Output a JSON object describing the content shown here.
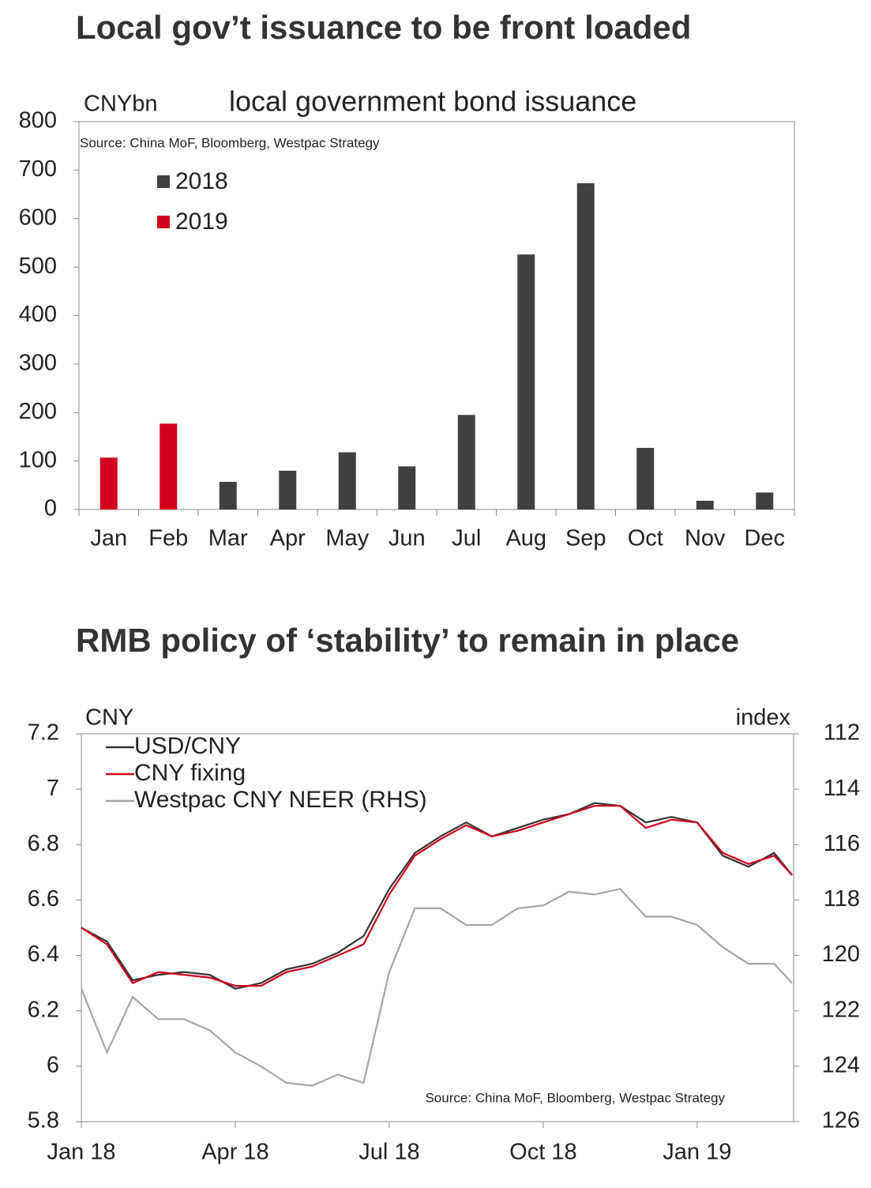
{
  "chart_data": [
    {
      "type": "bar",
      "title": "Local gov’t issuance to be front loaded",
      "subtitle": "local government bond issuance",
      "y_label": "CNYbn",
      "source": "Source: China MoF, Bloomberg, Westpac Strategy",
      "categories": [
        "Jan",
        "Feb",
        "Mar",
        "Apr",
        "May",
        "Jun",
        "Jul",
        "Aug",
        "Sep",
        "Oct",
        "Nov",
        "Dec"
      ],
      "series": [
        {
          "name": "2018",
          "color": "#404040",
          "values": [
            null,
            null,
            57,
            80,
            118,
            89,
            195,
            526,
            673,
            127,
            18,
            35
          ]
        },
        {
          "name": "2019",
          "color": "#d0021b",
          "values": [
            107,
            177,
            null,
            null,
            null,
            null,
            null,
            null,
            null,
            null,
            null,
            null
          ]
        }
      ],
      "ylim": [
        0,
        800
      ],
      "yticks": [
        0,
        100,
        200,
        300,
        400,
        500,
        600,
        700,
        800
      ]
    },
    {
      "type": "line",
      "title": "RMB policy of ‘stability’ to remain in place",
      "y_label": "CNY",
      "y2_label": "index",
      "source": "Source: China MoF, Bloomberg, Westpac Strategy",
      "x": [
        0,
        0.5,
        1,
        1.5,
        2,
        2.5,
        3,
        3.5,
        4,
        4.5,
        5,
        5.5,
        6,
        6.5,
        7,
        7.5,
        8,
        8.5,
        9,
        9.5,
        10,
        10.5,
        11,
        11.5,
        12,
        12.5,
        13,
        13.5,
        13.85
      ],
      "xlim": [
        0,
        13.88
      ],
      "xticks": [
        {
          "value": 0,
          "label": "Jan 18"
        },
        {
          "value": 3,
          "label": "Apr 18"
        },
        {
          "value": 6,
          "label": "Jul 18"
        },
        {
          "value": 9,
          "label": "Oct 18"
        },
        {
          "value": 12,
          "label": "Jan 19"
        }
      ],
      "series": [
        {
          "name": "USD/CNY",
          "color": "#333333",
          "values": [
            6.5,
            6.45,
            6.31,
            6.33,
            6.34,
            6.33,
            6.28,
            6.3,
            6.35,
            6.37,
            6.41,
            6.47,
            6.64,
            6.77,
            6.83,
            6.88,
            6.83,
            6.86,
            6.89,
            6.91,
            6.95,
            6.94,
            6.88,
            6.9,
            6.88,
            6.76,
            6.72,
            6.77,
            6.69
          ]
        },
        {
          "name": "CNY fixing",
          "color": "#d0021b",
          "values": [
            6.5,
            6.44,
            6.3,
            6.34,
            6.33,
            6.32,
            6.29,
            6.29,
            6.34,
            6.36,
            6.4,
            6.44,
            6.62,
            6.76,
            6.82,
            6.87,
            6.83,
            6.85,
            6.88,
            6.91,
            6.94,
            6.94,
            6.86,
            6.89,
            6.88,
            6.77,
            6.73,
            6.76,
            6.69
          ]
        },
        {
          "name": "Westpac CNY NEER (RHS)",
          "color": "#a6a6a6",
          "axis": "y2",
          "values": [
            121.2,
            123.5,
            121.5,
            122.3,
            122.3,
            122.7,
            123.5,
            124.0,
            124.6,
            124.7,
            124.3,
            124.6,
            120.6,
            118.3,
            118.3,
            118.9,
            118.9,
            118.3,
            118.2,
            117.7,
            117.8,
            117.6,
            118.6,
            118.6,
            118.9,
            119.7,
            120.3,
            120.3,
            121.0
          ]
        }
      ],
      "ylim": [
        5.8,
        7.2
      ],
      "yticks": [
        5.8,
        6,
        6.2,
        6.4,
        6.6,
        6.8,
        7,
        7.2
      ],
      "y2lim": [
        126,
        112
      ],
      "y2ticks": [
        112,
        114,
        116,
        118,
        120,
        122,
        124,
        126
      ]
    }
  ]
}
